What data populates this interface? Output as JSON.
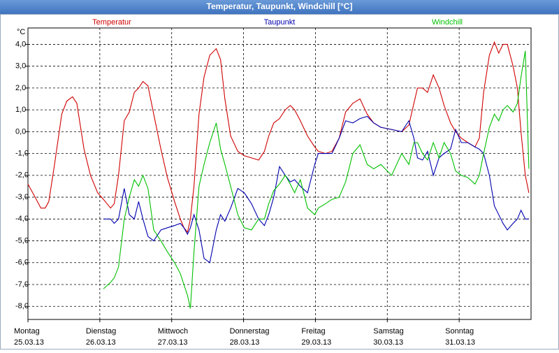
{
  "chart_data": {
    "type": "line",
    "title": "Temperatur, Taupunkt, Windchill [°C]",
    "y_unit": "°C",
    "x": [
      0,
      0.1,
      0.18,
      0.24,
      0.29,
      0.37,
      0.47,
      0.54,
      0.62,
      0.68,
      0.78,
      0.87,
      0.97,
      1.05,
      1.15,
      1.2,
      1.26,
      1.34,
      1.41,
      1.48,
      1.54,
      1.6,
      1.67,
      1.75,
      1.85,
      1.94,
      2.04,
      2.12,
      2.17,
      2.22,
      2.26,
      2.31,
      2.38,
      2.45,
      2.53,
      2.62,
      2.68,
      2.74,
      2.82,
      2.92,
      3.01,
      3.11,
      3.21,
      3.29,
      3.35,
      3.42,
      3.5,
      3.58,
      3.65,
      3.71,
      3.79,
      3.89,
      3.99,
      4.04,
      4.14,
      4.23,
      4.33,
      4.42,
      4.52,
      4.62,
      4.72,
      4.81,
      4.91,
      5.06,
      5.2,
      5.3,
      5.37,
      5.42,
      5.49,
      5.56,
      5.64,
      5.72,
      5.79,
      5.88,
      5.95,
      6.03,
      6.12,
      6.22,
      6.28,
      6.34,
      6.42,
      6.49,
      6.55,
      6.61,
      6.67,
      6.75,
      6.81,
      6.86,
      6.92,
      6.97
    ],
    "series": [
      {
        "name": "Temperatur",
        "color": "#d00000",
        "values": [
          -2.4,
          -3.0,
          -3.5,
          -3.5,
          -3.2,
          -1.5,
          0.8,
          1.4,
          1.6,
          1.3,
          -0.8,
          -2.0,
          -2.8,
          -3.1,
          -3.5,
          -3.3,
          -2.0,
          0.5,
          0.9,
          1.8,
          2.0,
          2.3,
          2.1,
          0.8,
          -0.8,
          -2.1,
          -3.2,
          -4.0,
          -4.4,
          -4.6,
          -4.0,
          -2.5,
          0.8,
          2.5,
          3.5,
          3.8,
          3.3,
          1.5,
          -0.2,
          -0.9,
          -1.1,
          -1.2,
          -1.3,
          -0.9,
          -0.2,
          0.4,
          0.6,
          1.0,
          1.2,
          1.0,
          0.5,
          -0.2,
          -0.7,
          -0.9,
          -1.0,
          -0.9,
          -0.3,
          0.9,
          1.3,
          1.5,
          0.8,
          0.4,
          0.2,
          0.1,
          0.0,
          0.3,
          1.3,
          2.0,
          2.0,
          1.8,
          2.6,
          2.0,
          1.2,
          0.4,
          0.0,
          -0.3,
          -0.5,
          -0.7,
          -0.3,
          1.8,
          3.5,
          4.1,
          3.6,
          4.0,
          4.0,
          3.0,
          2.0,
          0.0,
          -2.0,
          -2.8
        ]
      },
      {
        "name": "Taupunkt",
        "color": "#0000b0",
        "values": [
          null,
          null,
          null,
          null,
          null,
          null,
          null,
          null,
          null,
          null,
          null,
          null,
          null,
          -4.0,
          -4.0,
          -4.2,
          -4.0,
          -2.6,
          -3.8,
          -4.0,
          -3.2,
          -4.0,
          -4.8,
          -5.0,
          -4.5,
          -4.4,
          -4.3,
          -4.2,
          -4.4,
          -4.7,
          -4.4,
          -3.8,
          -4.5,
          -5.8,
          -6.0,
          -4.5,
          -3.8,
          -4.1,
          -3.5,
          -2.6,
          -2.8,
          -3.3,
          -4.0,
          -4.3,
          -3.8,
          -3.0,
          -1.6,
          -2.0,
          -2.3,
          -2.2,
          -2.5,
          -2.8,
          -1.5,
          -1.0,
          -1.0,
          -1.0,
          -0.3,
          0.5,
          0.4,
          0.6,
          0.7,
          0.4,
          0.2,
          0.1,
          0.0,
          0.5,
          -0.3,
          -1.2,
          -1.3,
          -0.9,
          -2.0,
          -1.2,
          -1.0,
          -0.8,
          0.1,
          -0.5,
          -0.5,
          -0.7,
          -0.8,
          -1.0,
          -2.0,
          -3.4,
          -3.8,
          -4.2,
          -4.5,
          -4.2,
          -4.0,
          -3.6,
          -4.0,
          -4.0
        ]
      },
      {
        "name": "Windchill",
        "color": "#00c000",
        "values": [
          null,
          null,
          null,
          null,
          null,
          null,
          null,
          null,
          null,
          null,
          null,
          null,
          null,
          -7.2,
          -6.9,
          -6.7,
          -6.2,
          -4.0,
          -3.0,
          -2.2,
          -2.5,
          -2.0,
          -2.6,
          -4.5,
          -5.0,
          -5.5,
          -6.0,
          -6.5,
          -7.0,
          -7.5,
          -8.1,
          -5.5,
          -2.5,
          -1.5,
          -0.5,
          0.4,
          -0.8,
          -1.5,
          -2.5,
          -3.8,
          -4.4,
          -4.5,
          -4.0,
          -4.0,
          -3.3,
          -2.7,
          -2.4,
          -2.0,
          -2.4,
          -2.8,
          -2.2,
          -3.5,
          -3.8,
          -3.5,
          -3.3,
          -3.1,
          -3.0,
          -2.3,
          -1.0,
          -0.6,
          -1.5,
          -1.7,
          -1.5,
          -2.0,
          -1.0,
          -1.5,
          -0.5,
          -0.5,
          -1.0,
          -1.3,
          -0.5,
          -1.2,
          -0.5,
          -1.0,
          -1.8,
          -2.0,
          -2.1,
          -2.4,
          -2.0,
          -1.0,
          0.2,
          0.8,
          0.5,
          1.0,
          1.2,
          0.9,
          1.3,
          2.5,
          3.7,
          -1.7
        ]
      }
    ],
    "xlim": [
      0,
      7
    ],
    "xticks": [
      {
        "value": 0,
        "label": "Montag",
        "date": "25.03.13"
      },
      {
        "value": 1,
        "label": "Dienstag",
        "date": "26.03.13"
      },
      {
        "value": 2,
        "label": "Mittwoch",
        "date": "27.03.13"
      },
      {
        "value": 3,
        "label": "Donnerstag",
        "date": "28.03.13"
      },
      {
        "value": 4,
        "label": "Freitag",
        "date": "29.03.13"
      },
      {
        "value": 5,
        "label": "Samstag",
        "date": "30.03.13"
      },
      {
        "value": 6,
        "label": "Sonntag",
        "date": "31.03.13"
      }
    ],
    "ylim": [
      -8.6,
      4.75
    ],
    "yticks": [
      {
        "value": 4,
        "label": "4,0"
      },
      {
        "value": 3,
        "label": "3,0"
      },
      {
        "value": 2,
        "label": "2,0"
      },
      {
        "value": 1,
        "label": "1,0"
      },
      {
        "value": 0,
        "label": "0,0"
      },
      {
        "value": -1,
        "label": "-1,0"
      },
      {
        "value": -2,
        "label": "-2,0"
      },
      {
        "value": -3,
        "label": "-3,0"
      },
      {
        "value": -4,
        "label": "-4,0"
      },
      {
        "value": -5,
        "label": "-5,0"
      },
      {
        "value": -6,
        "label": "-6,0"
      },
      {
        "value": -7,
        "label": "-7,0"
      },
      {
        "value": -8,
        "label": "-8,0"
      }
    ],
    "grid": true,
    "legend": "top"
  }
}
